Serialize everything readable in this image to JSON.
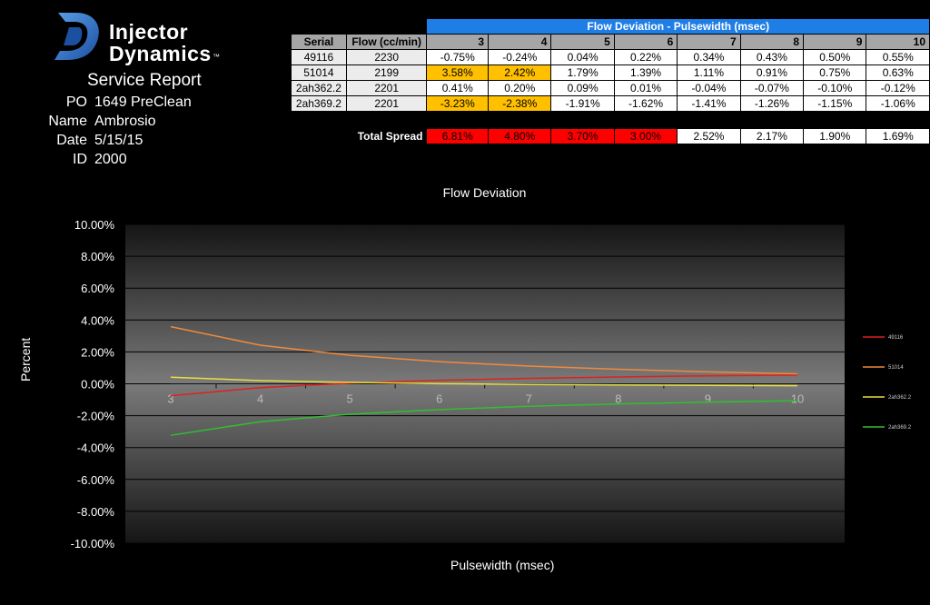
{
  "header": {
    "brand_line1": "Injector",
    "brand_line2": "Dynamics",
    "trademark": "™",
    "report_title": "Service Report"
  },
  "info": [
    {
      "label": "PO",
      "value": "1649 PreClean"
    },
    {
      "label": "Name",
      "value": "Ambrosio"
    },
    {
      "label": "Date",
      "value": "5/15/15"
    },
    {
      "label": "ID",
      "value": "2000"
    }
  ],
  "table": {
    "banner": "Flow Deviation - Pulsewidth (msec)",
    "col_serial": "Serial",
    "col_flow": "Flow (cc/min)",
    "pw_headers": [
      "3",
      "4",
      "5",
      "6",
      "7",
      "8",
      "9",
      "10"
    ],
    "rows": [
      {
        "serial": "49116",
        "flow": "2230",
        "vals": [
          "-0.75%",
          "-0.24%",
          "0.04%",
          "0.22%",
          "0.34%",
          "0.43%",
          "0.50%",
          "0.55%"
        ]
      },
      {
        "serial": "51014",
        "flow": "2199",
        "vals": [
          "3.58%",
          "2.42%",
          "1.79%",
          "1.39%",
          "1.11%",
          "0.91%",
          "0.75%",
          "0.63%"
        ]
      },
      {
        "serial": "2ah362.2",
        "flow": "2201",
        "vals": [
          "0.41%",
          "0.20%",
          "0.09%",
          "0.01%",
          "-0.04%",
          "-0.07%",
          "-0.10%",
          "-0.12%"
        ]
      },
      {
        "serial": "2ah369.2",
        "flow": "2201",
        "vals": [
          "-3.23%",
          "-2.38%",
          "-1.91%",
          "-1.62%",
          "-1.41%",
          "-1.26%",
          "-1.15%",
          "-1.06%"
        ]
      }
    ],
    "spread_label": "Total Spread",
    "spread_vals": [
      "6.81%",
      "4.80%",
      "3.70%",
      "3.00%",
      "2.52%",
      "2.17%",
      "1.90%",
      "1.69%"
    ],
    "colors": {
      "banner": "#1f7ee6",
      "highlight": "#ffc000",
      "alert": "#ff0000"
    }
  },
  "chart_data": {
    "type": "line",
    "title": "Flow Deviation",
    "xlabel": "Pulsewidth (msec)",
    "ylabel": "Percent",
    "x": [
      3,
      4,
      5,
      6,
      7,
      8,
      9,
      10
    ],
    "ylim": [
      -10,
      10
    ],
    "yticks": [
      "10.00%",
      "8.00%",
      "6.00%",
      "4.00%",
      "2.00%",
      "0.00%",
      "-2.00%",
      "-4.00%",
      "-6.00%",
      "-8.00%",
      "-10.00%"
    ],
    "ytick_values": [
      10,
      8,
      6,
      4,
      2,
      0,
      -2,
      -4,
      -6,
      -8,
      -10
    ],
    "xticks": [
      "3",
      "4",
      "5",
      "6",
      "7",
      "8",
      "9",
      "10"
    ],
    "grid": true,
    "legend_position": "right",
    "series": [
      {
        "name": "49116",
        "color": "#e02020",
        "values": [
          -0.75,
          -0.24,
          0.04,
          0.22,
          0.34,
          0.43,
          0.5,
          0.55
        ]
      },
      {
        "name": "51014",
        "color": "#f08a3c",
        "values": [
          3.58,
          2.42,
          1.79,
          1.39,
          1.11,
          0.91,
          0.75,
          0.63
        ]
      },
      {
        "name": "2ah362.2",
        "color": "#e8e040",
        "values": [
          0.41,
          0.2,
          0.09,
          0.01,
          -0.04,
          -0.07,
          -0.1,
          -0.12
        ]
      },
      {
        "name": "2ah369.2",
        "color": "#30c030",
        "values": [
          -3.23,
          -2.38,
          -1.91,
          -1.62,
          -1.41,
          -1.26,
          -1.15,
          -1.06
        ]
      }
    ]
  }
}
